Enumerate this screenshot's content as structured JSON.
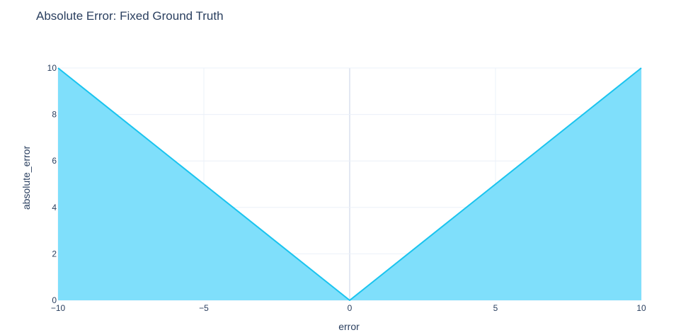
{
  "chart_data": {
    "type": "area",
    "title": "Absolute Error: Fixed Ground Truth",
    "xlabel": "error",
    "ylabel": "absolute_error",
    "x": [
      -10,
      0,
      10
    ],
    "y": [
      10,
      0,
      10
    ],
    "xlim": [
      -10,
      10
    ],
    "ylim": [
      0,
      10
    ],
    "xticks": [
      -10,
      -5,
      0,
      5,
      10
    ],
    "xtick_labels": [
      "−10",
      "−5",
      "0",
      "5",
      "10"
    ],
    "yticks": [
      0,
      2,
      4,
      6,
      8,
      10
    ],
    "ytick_labels": [
      "0",
      "2",
      "4",
      "6",
      "8",
      "10"
    ],
    "grid": true,
    "colors": {
      "fill": "#7fdffb",
      "line": "#1ac4ef",
      "grid": "#ebf0f8",
      "zeroline": "#e3e8f2",
      "text": "#2a3f5f"
    }
  }
}
